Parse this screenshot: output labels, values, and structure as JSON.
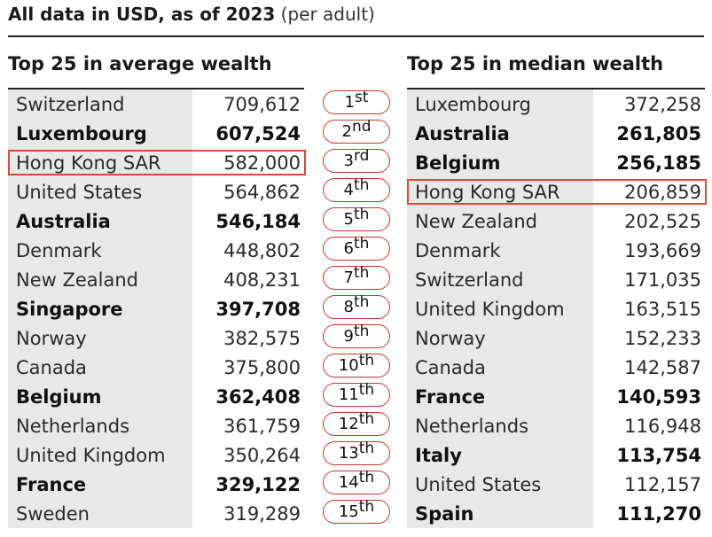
{
  "header": {
    "title": "All data in USD, as of 2023",
    "subtitle": "(per adult)"
  },
  "average": {
    "title": "Top 25 in average wealth",
    "rows": [
      {
        "country": "Switzerland",
        "value": "709,612",
        "bold": false
      },
      {
        "country": "Luxembourg",
        "value": "607,524",
        "bold": true
      },
      {
        "country": "Hong Kong SAR",
        "value": "582,000",
        "bold": false,
        "highlight": true
      },
      {
        "country": "United States",
        "value": "564,862",
        "bold": false
      },
      {
        "country": "Australia",
        "value": "546,184",
        "bold": true
      },
      {
        "country": "Denmark",
        "value": "448,802",
        "bold": false
      },
      {
        "country": "New Zealand",
        "value": "408,231",
        "bold": false
      },
      {
        "country": "Singapore",
        "value": "397,708",
        "bold": true
      },
      {
        "country": "Norway",
        "value": "382,575",
        "bold": false
      },
      {
        "country": "Canada",
        "value": "375,800",
        "bold": false
      },
      {
        "country": "Belgium",
        "value": "362,408",
        "bold": true
      },
      {
        "country": "Netherlands",
        "value": "361,759",
        "bold": false
      },
      {
        "country": "United Kingdom",
        "value": "350,264",
        "bold": false
      },
      {
        "country": "France",
        "value": "329,122",
        "bold": true
      },
      {
        "country": "Sweden",
        "value": "319,289",
        "bold": false
      }
    ]
  },
  "median": {
    "title": "Top 25 in median wealth",
    "rows": [
      {
        "country": "Luxembourg",
        "value": "372,258",
        "bold": false
      },
      {
        "country": "Australia",
        "value": "261,805",
        "bold": true
      },
      {
        "country": "Belgium",
        "value": "256,185",
        "bold": true
      },
      {
        "country": "Hong Kong SAR",
        "value": "206,859",
        "bold": false,
        "highlight": true
      },
      {
        "country": "New Zealand",
        "value": "202,525",
        "bold": false
      },
      {
        "country": "Denmark",
        "value": "193,669",
        "bold": false
      },
      {
        "country": "Switzerland",
        "value": "171,035",
        "bold": false
      },
      {
        "country": "United Kingdom",
        "value": "163,515",
        "bold": false
      },
      {
        "country": "Norway",
        "value": "152,233",
        "bold": false
      },
      {
        "country": "Canada",
        "value": "142,587",
        "bold": false
      },
      {
        "country": "France",
        "value": "140,593",
        "bold": true
      },
      {
        "country": "Netherlands",
        "value": "116,948",
        "bold": false
      },
      {
        "country": "Italy",
        "value": "113,754",
        "bold": true
      },
      {
        "country": "United States",
        "value": "112,157",
        "bold": false
      },
      {
        "country": "Spain",
        "value": "111,270",
        "bold": true
      }
    ]
  },
  "ranks": [
    {
      "num": "1",
      "suffix": "st"
    },
    {
      "num": "2",
      "suffix": "nd"
    },
    {
      "num": "3",
      "suffix": "rd"
    },
    {
      "num": "4",
      "suffix": "th"
    },
    {
      "num": "5",
      "suffix": "th"
    },
    {
      "num": "6",
      "suffix": "th"
    },
    {
      "num": "7",
      "suffix": "th"
    },
    {
      "num": "8",
      "suffix": "th"
    },
    {
      "num": "9",
      "suffix": "th"
    },
    {
      "num": "10",
      "suffix": "th"
    },
    {
      "num": "11",
      "suffix": "th"
    },
    {
      "num": "12",
      "suffix": "th"
    },
    {
      "num": "13",
      "suffix": "th"
    },
    {
      "num": "14",
      "suffix": "th"
    },
    {
      "num": "15",
      "suffix": "th"
    }
  ],
  "colors": {
    "highlight": "#d94a38",
    "rank_border": "#c8352c",
    "name_cell_bg": "#e8e8e8"
  }
}
